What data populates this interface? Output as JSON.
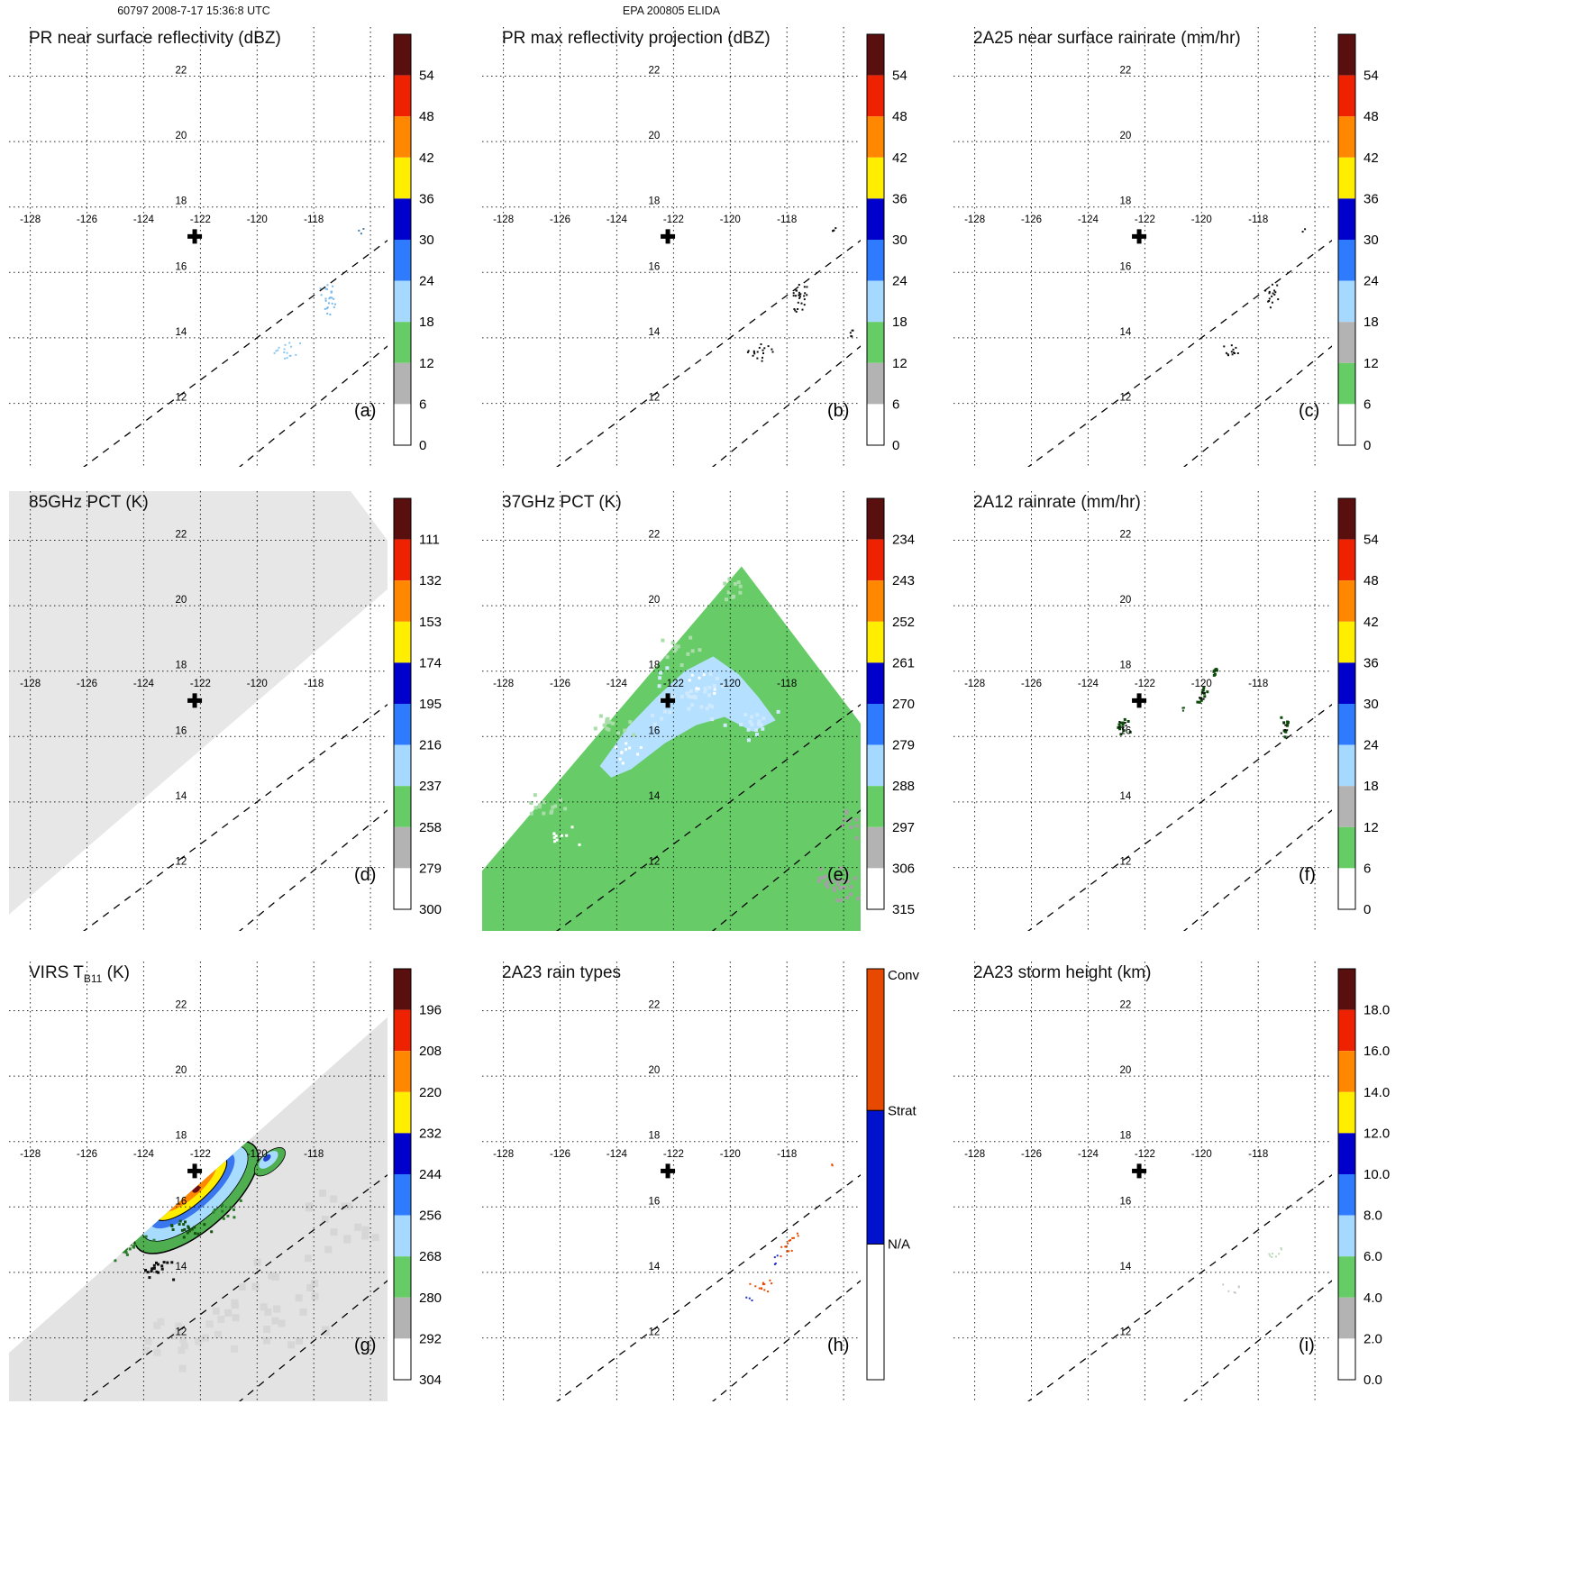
{
  "header": {
    "left_title": "60797 2008-7-17 15:36:8 UTC",
    "center_title": "EPA 200805 ELIDA"
  },
  "palettes": {
    "type_a": [
      "#5a0f0f",
      "#ee2200",
      "#ff8800",
      "#ffee00",
      "#0000cc",
      "#2e7bff",
      "#a6d9ff",
      "#66cc66",
      "#b3b3b3",
      "#ffffff"
    ],
    "type_b": [
      "#5a0f0f",
      "#ee2200",
      "#ff8800",
      "#ffee00",
      "#0000cc",
      "#2e7bff",
      "#a6d9ff",
      "#b3b3b3",
      "#66cc66",
      "#ffffff"
    ]
  },
  "map_geometry": {
    "lon_range": [
      -128.75,
      -115.4
    ],
    "lat_range": [
      10.06,
      23.5
    ],
    "grid_lons": [
      -128,
      -126,
      -124,
      -122,
      -120,
      -118,
      -116
    ],
    "grid_lats": [
      12,
      14,
      16,
      18,
      20,
      22
    ],
    "lon_labeled": [
      -128,
      -126,
      -124,
      -122,
      -120,
      -118
    ],
    "lat_labeled": [
      22,
      20,
      18,
      16,
      14,
      12
    ],
    "lon_label_lat": 17.52,
    "lat_label_lon": -122.35,
    "cross": {
      "lon": -122.2,
      "lat": 17.1
    },
    "dashed_lines": [
      [
        [
          -126.2,
          10.0
        ],
        [
          -114.9,
          17.3
        ]
      ],
      [
        [
          -120.7,
          10.0
        ],
        [
          -114.9,
          14.1
        ]
      ]
    ],
    "regions": {
      "tmi_85": [
        [
          -128.75,
          10.56
        ],
        [
          -115.4,
          20.5
        ],
        [
          -115.4,
          22.0
        ],
        [
          -116.7,
          23.5
        ],
        [
          -128.75,
          23.5
        ]
      ],
      "tmi_37": [
        [
          -128.75,
          11.9
        ],
        [
          -119.6,
          21.2
        ],
        [
          -115.4,
          16.4
        ],
        [
          -115.4,
          10.06
        ],
        [
          -128.75,
          10.06
        ]
      ],
      "virs": [
        [
          -128.75,
          11.54
        ],
        [
          -115.4,
          21.8
        ],
        [
          -115.4,
          10.06
        ],
        [
          -128.75,
          10.06
        ]
      ]
    }
  },
  "chart_data": [
    {
      "id": "a",
      "letter": "(a)",
      "type": "map",
      "title_main": "PR near surface reflectivity (dBZ)",
      "title_sub": "",
      "title_post": "",
      "colorbar": {
        "type": "scale",
        "palette": "type_a",
        "labels": [
          "54",
          "48",
          "42",
          "36",
          "30",
          "24",
          "18",
          "12",
          "6",
          "0"
        ]
      },
      "features": {
        "speckles": [
          [
            -117.45,
            15.2,
            0.35,
            0.5,
            24,
            2,
            "#79b8ea"
          ],
          [
            -118.95,
            13.55,
            0.5,
            0.3,
            16,
            2,
            "#8cc8ee"
          ],
          [
            -116.35,
            17.25,
            0.15,
            0.15,
            3,
            2,
            "#4b7da8"
          ]
        ]
      }
    },
    {
      "id": "b",
      "letter": "(b)",
      "type": "map",
      "title_main": "PR max reflectivity projection (dBZ)",
      "title_sub": "",
      "title_post": "",
      "colorbar": {
        "type": "scale",
        "palette": "type_a",
        "labels": [
          "54",
          "48",
          "42",
          "36",
          "30",
          "24",
          "18",
          "12",
          "6",
          "0"
        ]
      },
      "features": {
        "speckles": [
          [
            -117.5,
            15.25,
            0.35,
            0.55,
            26,
            2,
            "#101010"
          ],
          [
            -118.95,
            13.55,
            0.5,
            0.3,
            18,
            2,
            "#101010"
          ],
          [
            -116.35,
            17.3,
            0.12,
            0.12,
            4,
            2,
            "#101010"
          ],
          [
            -115.7,
            14.15,
            0.12,
            0.25,
            5,
            2,
            "#101010"
          ]
        ]
      }
    },
    {
      "id": "c",
      "letter": "(c)",
      "type": "map",
      "title_main": "2A25 near surface rainrate (mm/hr)",
      "title_sub": "",
      "title_post": "",
      "colorbar": {
        "type": "scale",
        "palette": "type_b",
        "labels": [
          "54",
          "48",
          "42",
          "36",
          "30",
          "24",
          "18",
          "12",
          "6",
          "0"
        ]
      },
      "features": {
        "speckles": [
          [
            -117.5,
            15.25,
            0.3,
            0.5,
            16,
            2,
            "#101010"
          ],
          [
            -118.95,
            13.55,
            0.45,
            0.28,
            12,
            2,
            "#101010"
          ],
          [
            -116.35,
            17.3,
            0.1,
            0.1,
            2,
            2,
            "#101010"
          ]
        ]
      }
    },
    {
      "id": "d",
      "letter": "(d)",
      "type": "map",
      "title_main": "85GHz PCT (K)",
      "title_sub": "",
      "title_post": "",
      "colorbar": {
        "type": "scale",
        "palette": "type_a",
        "labels": [
          "111",
          "132",
          "153",
          "174",
          "195",
          "216",
          "237",
          "258",
          "279",
          "300"
        ]
      },
      "features": {
        "region_key": "tmi_85",
        "region_fill": "#e7e7e7"
      }
    },
    {
      "id": "e",
      "letter": "(e)",
      "type": "map",
      "title_main": "37GHz PCT (K)",
      "title_sub": "",
      "title_post": "",
      "colorbar": {
        "type": "scale",
        "palette": "type_a",
        "labels": [
          "234",
          "243",
          "252",
          "261",
          "270",
          "279",
          "288",
          "297",
          "306",
          "315"
        ]
      },
      "features": {
        "region_key": "tmi_37",
        "region_fill": "#67cc67",
        "polygons": [
          {
            "points": [
              [
                -124.6,
                15.1
              ],
              [
                -123.6,
                16.3
              ],
              [
                -122.6,
                17.2
              ],
              [
                -121.6,
                18.0
              ],
              [
                -120.6,
                18.45
              ],
              [
                -119.7,
                17.9
              ],
              [
                -119.0,
                17.2
              ],
              [
                -118.4,
                16.5
              ],
              [
                -119.2,
                16.15
              ],
              [
                -120.2,
                16.6
              ],
              [
                -121.2,
                16.35
              ],
              [
                -122.3,
                15.8
              ],
              [
                -123.5,
                15.0
              ],
              [
                -124.2,
                14.75
              ]
            ],
            "fill": "#b5e0ff"
          }
        ],
        "speckles": [
          [
            -121.3,
            17.2,
            1.8,
            1.0,
            40,
            4,
            "#cfe9ff"
          ],
          [
            -119.0,
            16.4,
            0.8,
            0.6,
            16,
            4,
            "#cfe9ff"
          ],
          [
            -126.0,
            12.9,
            0.8,
            0.4,
            10,
            3,
            "#ffffff"
          ],
          [
            -123.5,
            15.5,
            0.8,
            0.4,
            10,
            3,
            "#ffffff"
          ],
          [
            -121.0,
            17.6,
            0.6,
            0.4,
            8,
            3,
            "#ffffff"
          ],
          [
            -116.1,
            11.5,
            0.8,
            0.9,
            28,
            4,
            "#a2a2a2"
          ],
          [
            -115.8,
            13.2,
            0.5,
            0.6,
            10,
            4,
            "#a2a2a2"
          ]
        ],
        "speckles_free": [
          [
            -126.5,
            13.8,
            0.9,
            0.5,
            14,
            4,
            "#a9dda9"
          ],
          [
            -124.0,
            16.4,
            0.9,
            0.5,
            14,
            4,
            "#a9dda9"
          ],
          [
            -121.8,
            18.6,
            0.8,
            0.5,
            12,
            4,
            "#a9dda9"
          ],
          [
            -119.9,
            20.5,
            0.6,
            0.4,
            10,
            4,
            "#a9dda9"
          ]
        ]
      }
    },
    {
      "id": "f",
      "letter": "(f)",
      "type": "map",
      "title_main": "2A12 rainrate (mm/hr)",
      "title_sub": "",
      "title_post": "",
      "colorbar": {
        "type": "scale",
        "palette": "type_b",
        "labels": [
          "54",
          "48",
          "42",
          "36",
          "30",
          "24",
          "18",
          "12",
          "6",
          "0"
        ]
      },
      "features": {
        "speckles": [
          [
            -122.75,
            16.3,
            0.28,
            0.35,
            12,
            3,
            "#0c4a0c"
          ],
          [
            -122.75,
            16.3,
            0.2,
            0.25,
            6,
            2,
            "#101010"
          ],
          [
            -119.95,
            17.3,
            0.2,
            0.4,
            10,
            3,
            "#0c4a0c"
          ],
          [
            -119.95,
            17.3,
            0.15,
            0.3,
            5,
            2,
            "#101010"
          ],
          [
            -119.5,
            18.0,
            0.15,
            0.3,
            8,
            3,
            "#0c4a0c"
          ],
          [
            -117.05,
            16.25,
            0.2,
            0.45,
            10,
            3,
            "#0c4a0c"
          ],
          [
            -117.05,
            16.25,
            0.15,
            0.3,
            5,
            2,
            "#101010"
          ],
          [
            -120.6,
            16.85,
            0.1,
            0.1,
            3,
            2,
            "#0c4a0c"
          ]
        ]
      }
    },
    {
      "id": "g",
      "letter": "(g)",
      "type": "map",
      "title_main": "VIRS T",
      "title_sub": "B11",
      "title_post": " (K)",
      "colorbar": {
        "type": "scale",
        "palette": "type_a",
        "labels": [
          "196",
          "208",
          "220",
          "232",
          "244",
          "256",
          "268",
          "280",
          "292",
          "304"
        ]
      },
      "features": {
        "region_key": "virs",
        "region_fill": "#e3e3e3",
        "texture": [
          [
            -119.5,
            13.0,
            2.3,
            1.8,
            26,
            8,
            "#d6d6d6"
          ],
          [
            -122.5,
            12.0,
            2.0,
            1.2,
            18,
            8,
            "#d8d8d8"
          ],
          [
            -117.0,
            15.5,
            1.5,
            1.5,
            16,
            8,
            "#d6d6d6"
          ]
        ],
        "ellipses": [
          [
            -122.15,
            16.3,
            86,
            36,
            -41,
            "#4fae4f",
            "#000000",
            1.5
          ],
          [
            -122.2,
            16.42,
            74,
            29,
            -41,
            "#a8dcff",
            "#000000",
            0.8
          ],
          [
            -122.3,
            16.52,
            60,
            22,
            -41,
            "#3a77ee",
            "none",
            0
          ],
          [
            -122.35,
            16.58,
            51,
            18,
            -41,
            "#ffee00",
            "#000000",
            1
          ],
          [
            -122.45,
            16.64,
            41,
            14,
            -41,
            "#ff8800",
            "none",
            0
          ],
          [
            -122.5,
            16.7,
            31,
            10,
            -41,
            "#ee2200",
            "none",
            0
          ],
          [
            -122.75,
            16.82,
            7,
            4.5,
            -41,
            "#6a0f0f",
            "none",
            0
          ],
          [
            -122.15,
            16.55,
            5,
            3.5,
            -41,
            "#6a0f0f",
            "none",
            0
          ],
          [
            -119.55,
            17.38,
            21,
            10,
            -41,
            "#4fae4f",
            "#000000",
            0.8
          ],
          [
            -119.6,
            17.44,
            13,
            6.5,
            -41,
            "#a8dcff",
            "none",
            0
          ],
          [
            -119.65,
            17.5,
            5,
            3,
            -41,
            "#2244cc",
            "none",
            0
          ]
        ],
        "speckles": [
          [
            -124.5,
            14.8,
            0.9,
            0.55,
            30,
            3,
            "#2a7d2a"
          ],
          [
            -123.5,
            14.15,
            0.7,
            0.4,
            18,
            3,
            "#101010"
          ],
          [
            -122.3,
            15.3,
            1.0,
            0.35,
            20,
            3,
            "#15540f"
          ],
          [
            -121.0,
            15.9,
            0.6,
            0.3,
            10,
            3,
            "#2a7d2a"
          ],
          [
            -125.2,
            15.1,
            0.3,
            0.3,
            8,
            3,
            "#101010"
          ]
        ]
      }
    },
    {
      "id": "h",
      "letter": "(h)",
      "type": "map",
      "title_main": "2A23 rain types",
      "title_sub": "",
      "title_post": "",
      "colorbar": {
        "type": "categorical",
        "segments": [
          {
            "label": "Conv",
            "color": "#e84900",
            "frac": 0.345
          },
          {
            "label": "Strat",
            "color": "#0012cc",
            "frac": 0.325
          },
          {
            "label": "N/A",
            "color": "#ffffff",
            "frac": 0.33
          }
        ]
      },
      "features": {
        "speckles": [
          [
            -117.9,
            14.9,
            0.35,
            0.45,
            14,
            2,
            "#e84900"
          ],
          [
            -118.9,
            13.55,
            0.5,
            0.3,
            12,
            2,
            "#e84900"
          ],
          [
            -118.35,
            14.3,
            0.2,
            0.25,
            4,
            2,
            "#2233cc"
          ],
          [
            -116.35,
            17.25,
            0.1,
            0.1,
            2,
            2,
            "#e84900"
          ],
          [
            -119.3,
            13.2,
            0.15,
            0.15,
            3,
            2,
            "#2233cc"
          ]
        ]
      }
    },
    {
      "id": "i",
      "letter": "(i)",
      "type": "map",
      "title_main": "2A23 storm height (km)",
      "title_sub": "",
      "title_post": "",
      "colorbar": {
        "type": "scale",
        "palette": "type_a",
        "labels": [
          "18.0",
          "16.0",
          "14.0",
          "12.0",
          "10.0",
          "8.0",
          "6.0",
          "4.0",
          "2.0",
          "0.0"
        ]
      },
      "features": {
        "speckles": [
          [
            -117.4,
            14.6,
            0.3,
            0.35,
            8,
            2,
            "#bcd9bc"
          ],
          [
            -118.9,
            13.5,
            0.4,
            0.25,
            6,
            2,
            "#c8c8c8"
          ]
        ]
      }
    }
  ]
}
